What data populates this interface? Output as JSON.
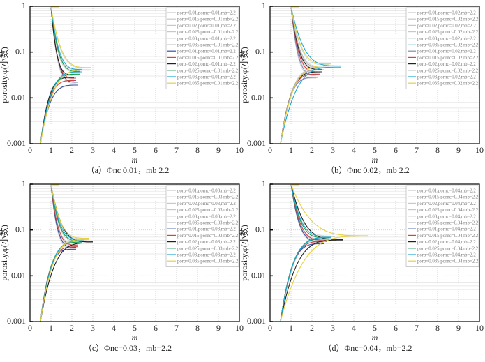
{
  "chart_data": [
    {
      "type": "line",
      "caption": "（a）Φnc 0.01，mb 2.2",
      "xlabel": "m",
      "ylabel": "porosity,φ(小数)",
      "xlim": [
        0,
        10
      ],
      "ylim": [
        0.001,
        1
      ],
      "yscale": "log",
      "xticks": [
        "0",
        "1",
        "2",
        "3",
        "4",
        "5",
        "6",
        "7",
        "8",
        "9",
        "10"
      ],
      "yticks": [
        "0.001",
        "0.01",
        "0.1",
        "1"
      ],
      "legend_position": "top-right",
      "series": [
        {
          "name": "porb=0.01,pornc=0.01,mb=2.2",
          "color": "#c8c8c8",
          "tip_m": 2.2,
          "upper_phi": 0.021,
          "lower_phi": 0.018
        },
        {
          "name": "porb=0.015,pornc=0.01,mb=2.2",
          "color": "#c8c8c8",
          "tip_m": 2.1,
          "upper_phi": 0.026,
          "lower_phi": 0.023
        },
        {
          "name": "porb=0.02,pornc=0.01,mb=2.2",
          "color": "#c8c8c8",
          "tip_m": 2.0,
          "upper_phi": 0.031,
          "lower_phi": 0.027
        },
        {
          "name": "porb=0.025,pornc=0.01,mb=2.2",
          "color": "#c8c8c8",
          "tip_m": 2.3,
          "upper_phi": 0.037,
          "lower_phi": 0.032
        },
        {
          "name": "porb=0.03,pornc=0.01,mb=2.2",
          "color": "#c8c8c8",
          "tip_m": 2.4,
          "upper_phi": 0.041,
          "lower_phi": 0.036
        },
        {
          "name": "porb=0.035,pornc=0.01,mb=2.2",
          "color": "#c8c8c8",
          "tip_m": 2.8,
          "upper_phi": 0.045,
          "lower_phi": 0.04
        },
        {
          "name": "porb=0.01,pornc=0.01,mb=2.2",
          "color": "#3a4fa0",
          "tip_m": 2.3,
          "upper_phi": 0.022,
          "lower_phi": 0.019
        },
        {
          "name": "porb=0.015,pornc=0.01,mb=2.2",
          "color": "#c8474a",
          "tip_m": 2.2,
          "upper_phi": 0.027,
          "lower_phi": 0.024
        },
        {
          "name": "porb=0.02,pornc=0.01,mb=2.2",
          "color": "#222222",
          "tip_m": 2.1,
          "upper_phi": 0.032,
          "lower_phi": 0.028
        },
        {
          "name": "porb=0.025,pornc=0.01,mb=2.2",
          "color": "#1a9a50",
          "tip_m": 2.4,
          "upper_phi": 0.038,
          "lower_phi": 0.033
        },
        {
          "name": "porb=0.03,pornc=0.01,mb=2.2",
          "color": "#19a8d0",
          "tip_m": 2.5,
          "upper_phi": 0.042,
          "lower_phi": 0.037
        },
        {
          "name": "porb=0.035,pornc=0.01,mb=2.2",
          "color": "#e8d040",
          "tip_m": 2.9,
          "upper_phi": 0.046,
          "lower_phi": 0.041
        }
      ]
    },
    {
      "type": "line",
      "caption": "（b）Φnc 0.02，mb 2.2",
      "xlabel": "m",
      "ylabel": "porosity,φ(小数)",
      "xlim": [
        0,
        10
      ],
      "ylim": [
        0.001,
        1
      ],
      "yscale": "log",
      "xticks": [
        "0",
        "1",
        "2",
        "3",
        "4",
        "5",
        "6",
        "7",
        "8",
        "9",
        "10"
      ],
      "yticks": [
        "0.001",
        "0.01",
        "0.1",
        "1"
      ],
      "legend_position": "top-right",
      "series": [
        {
          "name": "porb=0.01,pornc=0.02,mb=2.2",
          "color": "#c8c8c8",
          "tip_m": 2.2,
          "upper_phi": 0.031,
          "lower_phi": 0.027
        },
        {
          "name": "porb=0.015,pornc=0.02,mb=2.2",
          "color": "#c8c8c8",
          "tip_m": 2.3,
          "upper_phi": 0.036,
          "lower_phi": 0.032
        },
        {
          "name": "porb=0.02,pornc=0.02,mb=2.2",
          "color": "#c8c8c8",
          "tip_m": 2.4,
          "upper_phi": 0.041,
          "lower_phi": 0.036
        },
        {
          "name": "porb=0.025,pornc=0.02,mb=2.2",
          "color": "#c8c8c8",
          "tip_m": 2.5,
          "upper_phi": 0.045,
          "lower_phi": 0.04
        },
        {
          "name": "porb=0.03,pornc=0.02,mb=2.2",
          "color": "#c8c8c8",
          "tip_m": 2.6,
          "upper_phi": 0.049,
          "lower_phi": 0.045
        },
        {
          "name": "porb=0.035,pornc=0.02,mb=2.2",
          "color": "#a8d8ec",
          "tip_m": 2.8,
          "upper_phi": 0.053,
          "lower_phi": 0.049
        },
        {
          "name": "porb=0.01,pornc=0.02,mb=2.2",
          "color": "#8088b8",
          "tip_m": 2.3,
          "upper_phi": 0.032,
          "lower_phi": 0.028
        },
        {
          "name": "porb=0.015,pornc=0.02,mb=2.2",
          "color": "#c8474a",
          "tip_m": 2.4,
          "upper_phi": 0.037,
          "lower_phi": 0.033
        },
        {
          "name": "porb=0.02,pornc=0.02,mb=2.2",
          "color": "#222222",
          "tip_m": 2.5,
          "upper_phi": 0.042,
          "lower_phi": 0.037
        },
        {
          "name": "porb=0.025,pornc=0.02,mb=2.2",
          "color": "#b0b0b0",
          "tip_m": 2.6,
          "upper_phi": 0.046,
          "lower_phi": 0.041
        },
        {
          "name": "porb=0.03,pornc=0.02,mb=2.2",
          "color": "#19a8d0",
          "tip_m": 3.4,
          "upper_phi": 0.05,
          "lower_phi": 0.047
        },
        {
          "name": "porb=0.035,pornc=0.02,mb=2.2",
          "color": "#e8d040",
          "tip_m": 2.9,
          "upper_phi": 0.055,
          "lower_phi": 0.05
        }
      ]
    },
    {
      "type": "line",
      "caption": "（c）Φnc=0.03，mb=2.2",
      "xlabel": "m",
      "ylabel": "porosity,φ(小数)",
      "xlim": [
        0,
        10
      ],
      "ylim": [
        0.001,
        1
      ],
      "yscale": "log",
      "xticks": [
        "0",
        "1",
        "2",
        "3",
        "4",
        "5",
        "6",
        "7",
        "8",
        "9",
        "10"
      ],
      "yticks": [
        "0.001",
        "0.01",
        "0.1",
        "1"
      ],
      "legend_position": "top-right",
      "series": [
        {
          "name": "porb=0.01,pornc=0.03,mb=2.2",
          "color": "#c8c8c8",
          "tip_m": 2.1,
          "upper_phi": 0.041,
          "lower_phi": 0.037
        },
        {
          "name": "porb=0.015,pornc=0.03,mb=2.2",
          "color": "#c8c8c8",
          "tip_m": 2.2,
          "upper_phi": 0.046,
          "lower_phi": 0.042
        },
        {
          "name": "porb=0.02,pornc=0.03,mb=2.2",
          "color": "#c8c8c8",
          "tip_m": 2.3,
          "upper_phi": 0.051,
          "lower_phi": 0.047
        },
        {
          "name": "porb=0.025,pornc=0.03,mb=2.2",
          "color": "#c8c8c8",
          "tip_m": 2.4,
          "upper_phi": 0.056,
          "lower_phi": 0.052
        },
        {
          "name": "porb=0.03,pornc=0.03,mb=2.2",
          "color": "#c8c8c8",
          "tip_m": 2.5,
          "upper_phi": 0.06,
          "lower_phi": 0.056
        },
        {
          "name": "porb=0.035,pornc=0.03,mb=2.2",
          "color": "#c8c8c8",
          "tip_m": 2.7,
          "upper_phi": 0.064,
          "lower_phi": 0.06
        },
        {
          "name": "porb=0.01,pornc=0.03,mb=2.2",
          "color": "#3a4fa0",
          "tip_m": 2.2,
          "upper_phi": 0.042,
          "lower_phi": 0.038
        },
        {
          "name": "porb=0.015,pornc=0.03,mb=2.2",
          "color": "#c8474a",
          "tip_m": 2.3,
          "upper_phi": 0.047,
          "lower_phi": 0.043
        },
        {
          "name": "porb=0.02,pornc=0.03,mb=2.2",
          "color": "#222222",
          "tip_m": 3.0,
          "upper_phi": 0.055,
          "lower_phi": 0.052
        },
        {
          "name": "porb=0.025,pornc=0.03,mb=2.2",
          "color": "#1a9a50",
          "tip_m": 2.5,
          "upper_phi": 0.058,
          "lower_phi": 0.054
        },
        {
          "name": "porb=0.03,pornc=0.03,mb=2.2",
          "color": "#19a8d0",
          "tip_m": 2.6,
          "upper_phi": 0.062,
          "lower_phi": 0.058
        },
        {
          "name": "porb=0.035,pornc=0.03,mb=2.2",
          "color": "#e8d040",
          "tip_m": 2.8,
          "upper_phi": 0.066,
          "lower_phi": 0.062
        }
      ]
    },
    {
      "type": "line",
      "caption": "（d）Φnc=0.04，mb=2.2",
      "xlabel": "m",
      "ylabel": "porosity,φ(小数)",
      "xlim": [
        0,
        10
      ],
      "ylim": [
        0.001,
        1
      ],
      "yscale": "log",
      "xticks": [
        "0",
        "1",
        "2",
        "3",
        "4",
        "5",
        "6",
        "7",
        "8",
        "9",
        "10"
      ],
      "yticks": [
        "0.001",
        "0.01",
        "0.1",
        "1"
      ],
      "legend_position": "top-right",
      "series": [
        {
          "name": "porb=0.01,pornc=0.04,mb=2.2",
          "color": "#c8c8c8",
          "tip_m": 2.5,
          "upper_phi": 0.054,
          "lower_phi": 0.049
        },
        {
          "name": "porb=0.015,pornc=0.04,mb=2.2",
          "color": "#c8c8c8",
          "tip_m": 2.6,
          "upper_phi": 0.059,
          "lower_phi": 0.055
        },
        {
          "name": "porb=0.02,pornc=0.04,mb=2.2",
          "color": "#c8c8c8",
          "tip_m": 2.7,
          "upper_phi": 0.063,
          "lower_phi": 0.059
        },
        {
          "name": "porb=0.025,pornc=0.04,mb=2.2",
          "color": "#c8c8c8",
          "tip_m": 2.8,
          "upper_phi": 0.067,
          "lower_phi": 0.063
        },
        {
          "name": "porb=0.03,pornc=0.04,mb=2.2",
          "color": "#c8c8c8",
          "tip_m": 2.9,
          "upper_phi": 0.071,
          "lower_phi": 0.067
        },
        {
          "name": "porb=0.035,pornc=0.04,mb=2.2",
          "color": "#c8c8c8",
          "tip_m": 3.1,
          "upper_phi": 0.074,
          "lower_phi": 0.071
        },
        {
          "name": "porb=0.01,pornc=0.04,mb=2.2",
          "color": "#3a4fa0",
          "tip_m": 2.6,
          "upper_phi": 0.055,
          "lower_phi": 0.05
        },
        {
          "name": "porb=0.015,pornc=0.04,mb=2.2",
          "color": "#c8474a",
          "tip_m": 2.7,
          "upper_phi": 0.06,
          "lower_phi": 0.056
        },
        {
          "name": "porb=0.02,pornc=0.04,mb=2.2",
          "color": "#222222",
          "tip_m": 3.5,
          "upper_phi": 0.062,
          "lower_phi": 0.06
        },
        {
          "name": "porb=0.025,pornc=0.04,mb=2.2",
          "color": "#1a9a50",
          "tip_m": 2.8,
          "upper_phi": 0.068,
          "lower_phi": 0.064
        },
        {
          "name": "porb=0.03,pornc=0.04,mb=2.2",
          "color": "#19a8d0",
          "tip_m": 2.9,
          "upper_phi": 0.072,
          "lower_phi": 0.068
        },
        {
          "name": "porb=0.035,pornc=0.04,mb=2.2",
          "color": "#e8d040",
          "tip_m": 4.7,
          "upper_phi": 0.075,
          "lower_phi": 0.073
        }
      ]
    }
  ]
}
